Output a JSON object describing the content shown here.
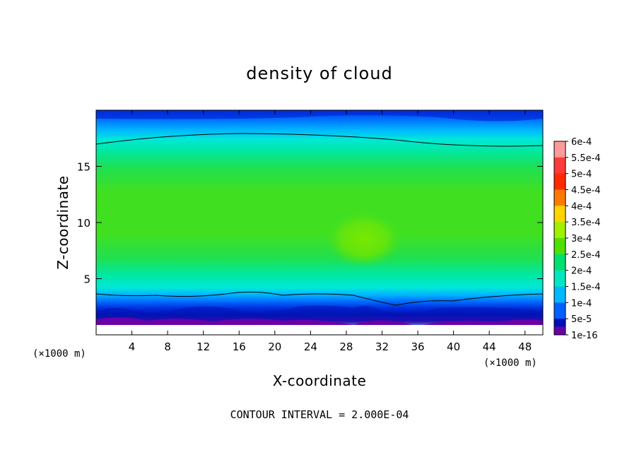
{
  "chart_data": {
    "type": "heatmap",
    "title": "density of cloud",
    "xlabel": "X-coordinate",
    "ylabel": "Z-coordinate",
    "x_unit": "(×1000 m)",
    "y_unit": "(×1000 m)",
    "xlim": [
      0,
      50
    ],
    "ylim": [
      0,
      20
    ],
    "x_ticks": [
      4,
      8,
      12,
      16,
      20,
      24,
      28,
      32,
      36,
      40,
      44,
      48
    ],
    "y_ticks": [
      5,
      10,
      15
    ],
    "colorbar": {
      "labels": [
        "6e-4",
        "5.5e-4",
        "5e-4",
        "4.5e-4",
        "4e-4",
        "3.5e-4",
        "3e-4",
        "2.5e-4",
        "2e-4",
        "1.5e-4",
        "1e-4",
        "5e-5",
        "1e-16"
      ],
      "colors": [
        "#ff9a9a",
        "#ff3a3a",
        "#ff2a00",
        "#ff7a00",
        "#ffd400",
        "#a0f000",
        "#50e000",
        "#00e070",
        "#00e8c0",
        "#00b8ff",
        "#0060ff",
        "#0010b8",
        "#6a00a8"
      ]
    },
    "layers": [
      {
        "level": "1e-16",
        "approx_z_range": [
          0.5,
          1.3
        ]
      },
      {
        "level": "5e-5 to 1e-4",
        "approx_z_range": [
          1.3,
          2.8
        ]
      },
      {
        "level": "1.5e-4 to 2e-4",
        "approx_z_range": [
          2.8,
          4.0
        ]
      },
      {
        "level": "2.5e-4 to 3e-4",
        "approx_z_range": [
          4.0,
          17.0
        ]
      },
      {
        "level": "max ~3.5e-4",
        "approx_center": [
          30,
          8.5
        ]
      },
      {
        "level": "2e-4 to 5e-5",
        "approx_z_range": [
          17.0,
          19.8
        ]
      }
    ],
    "contour_interval": "2.000E-04"
  },
  "footer": {
    "contour_label": "CONTOUR INTERVAL = 2.000E-04"
  }
}
